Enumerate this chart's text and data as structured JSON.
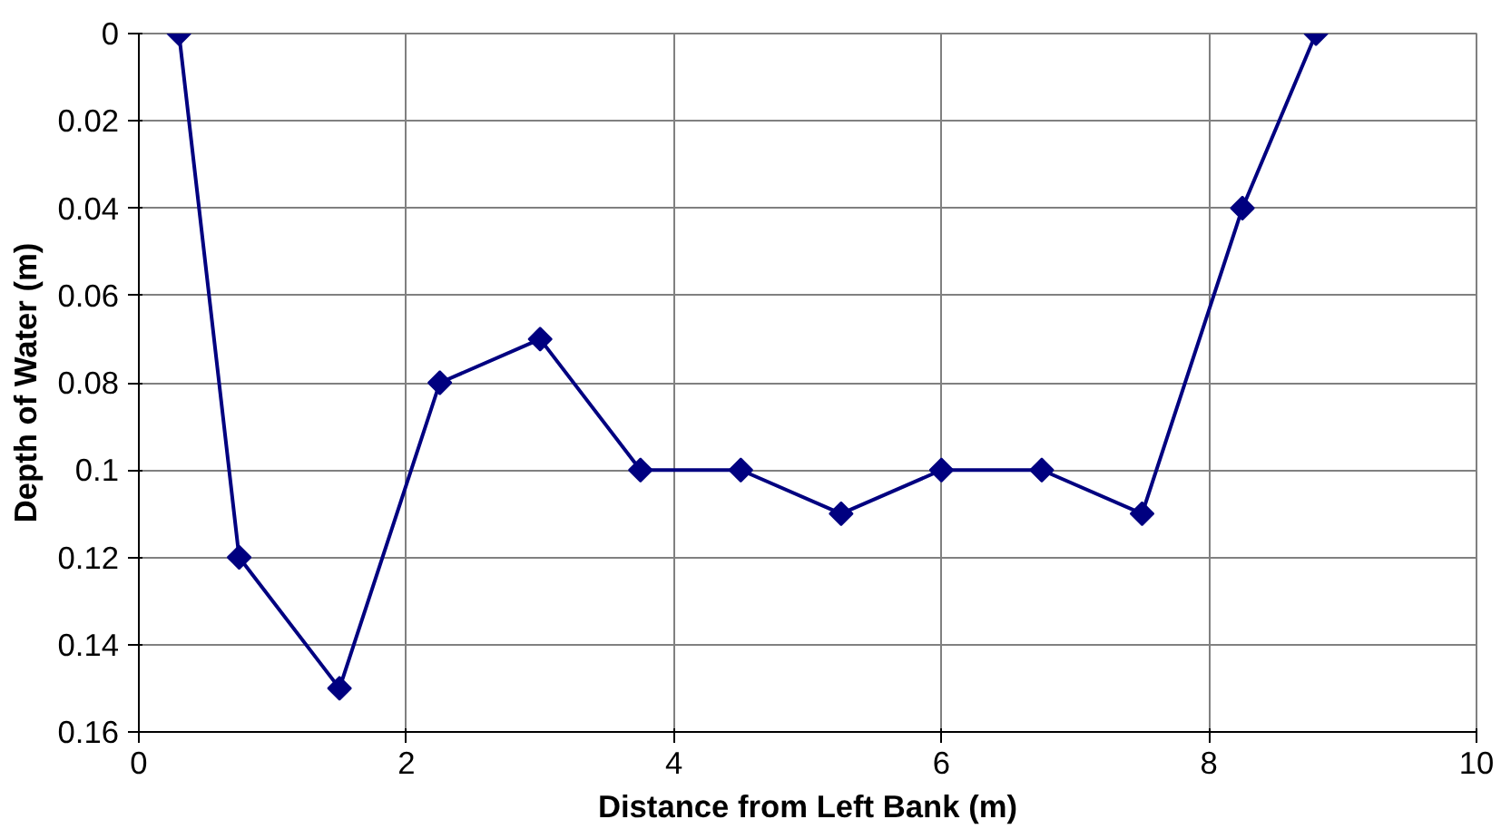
{
  "chart_data": {
    "type": "line",
    "xlabel": "Distance from Left Bank (m)",
    "ylabel": "Depth of Water (m)",
    "x": [
      0.3,
      0.75,
      1.5,
      2.25,
      3,
      3.75,
      4.5,
      5.25,
      6,
      6.75,
      7.5,
      8.25,
      8.8
    ],
    "series": [
      {
        "color": "#000080",
        "values": [
          0,
          0.12,
          0.15,
          0.08,
          0.07,
          0.1,
          0.1,
          0.11,
          0.1,
          0.1,
          0.11,
          0.04,
          0
        ]
      }
    ],
    "xlim": [
      0,
      10
    ],
    "xticks": [
      0,
      2,
      4,
      6,
      8,
      10
    ],
    "ylim": [
      0.16,
      0
    ],
    "yticks": [
      0,
      0.02,
      0.04,
      0.06,
      0.08,
      0.1,
      0.12,
      0.14,
      0.16
    ],
    "grid": true,
    "marker": "diamond",
    "line_style": "solid"
  }
}
